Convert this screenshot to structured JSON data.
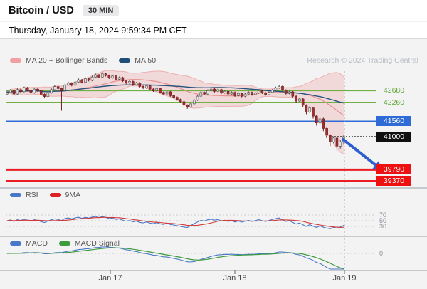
{
  "header": {
    "title": "Bitcoin / USD",
    "interval": "30 MIN",
    "datetime": "Thursday, January 18, 2024 9:59:34 PM CET",
    "research": "Research © 2024 Trading Central"
  },
  "colors": {
    "green_level": "#5fa636",
    "blue_level": "#2e6bd6",
    "red_level": "#ee1111",
    "last_price_bg": "#101010",
    "ma20": "#f0a0a0",
    "ma50": "#1f4e79",
    "rsi": "#4a78c8",
    "rsi_ma": "#dd2222",
    "macd": "#4a78c8",
    "macd_signal": "#3f9b3f",
    "arrow": "#2f5fce"
  },
  "chart_data": {
    "type": "candlestick",
    "title": "Bitcoin / USD 30 MIN",
    "x_labels": [
      "Jan 17",
      "Jan 18",
      "Jan 19"
    ],
    "price_panel": {
      "legend_ma20": "MA 20 + Bollinger Bands",
      "legend_ma50": "MA 50",
      "y_range": [
        39200,
        43500
      ],
      "first_open": 42560,
      "closes": [
        42620,
        42700,
        42560,
        42720,
        42650,
        42780,
        42690,
        42600,
        42740,
        42680,
        42550,
        42470,
        42600,
        42720,
        42830,
        42760,
        42680,
        42890,
        42960,
        42880,
        43000,
        43080,
        42990,
        43120,
        43060,
        43180,
        43260,
        43180,
        43300,
        43240,
        43150,
        43220,
        43100,
        43160,
        43040,
        42960,
        43020,
        42900,
        42960,
        42840,
        42780,
        42860,
        42740,
        42680,
        42760,
        42620,
        42560,
        42640,
        42500,
        42440,
        42360,
        42280,
        42150,
        42080,
        42200,
        42340,
        42480,
        42620,
        42560,
        42680,
        42740,
        42660,
        42720,
        42600,
        42660,
        42560,
        42620,
        42500,
        42580,
        42480,
        42560,
        42620,
        42540,
        42600,
        42680,
        42600,
        42540,
        42620,
        42700,
        42780,
        42840,
        42700,
        42580,
        42640,
        42480,
        42300,
        42380,
        42150,
        41900,
        42050,
        41750,
        41500,
        41650,
        41300,
        41050,
        40800,
        40950,
        40650,
        40800,
        41000
      ],
      "highs": [
        42670,
        42740,
        42730,
        42770,
        42760,
        42830,
        42820,
        42720,
        42790,
        42780,
        42710,
        42580,
        42650,
        42770,
        42880,
        42860,
        42800,
        42940,
        43010,
        42990,
        43050,
        43130,
        43110,
        43170,
        43150,
        43230,
        43310,
        43290,
        43380,
        43330,
        43270,
        43260,
        43250,
        43200,
        43190,
        43070,
        43060,
        43050,
        43000,
        42990,
        42870,
        42900,
        42890,
        42770,
        42800,
        42790,
        42650,
        42680,
        42670,
        42530,
        42470,
        42390,
        42310,
        42180,
        42250,
        42390,
        42530,
        42670,
        42650,
        42730,
        42790,
        42770,
        42760,
        42750,
        42700,
        42690,
        42660,
        42650,
        42620,
        42610,
        42600,
        42660,
        42650,
        42640,
        42720,
        42710,
        42630,
        42660,
        42740,
        42830,
        42890,
        42870,
        42730,
        42680,
        42670,
        42510,
        42430,
        42410,
        42180,
        42110,
        42080,
        41790,
        41710,
        41690,
        41340,
        41090,
        41010,
        40990,
        40870,
        41060
      ],
      "lows": [
        42520,
        42590,
        42520,
        42530,
        42610,
        42620,
        42650,
        42560,
        42570,
        42640,
        42510,
        42430,
        42440,
        42570,
        42690,
        42720,
        41950,
        42650,
        42860,
        42840,
        42850,
        42970,
        42950,
        42960,
        43020,
        43030,
        43150,
        43140,
        43150,
        43200,
        43110,
        43120,
        43060,
        43070,
        43000,
        42920,
        42930,
        42860,
        42870,
        42800,
        42740,
        42750,
        42700,
        42640,
        42650,
        42580,
        42520,
        42530,
        42460,
        42400,
        42320,
        42230,
        42100,
        42020,
        42050,
        42170,
        42310,
        42450,
        42520,
        42530,
        42650,
        42620,
        42630,
        42560,
        42570,
        42520,
        42530,
        42460,
        42470,
        42440,
        42450,
        42530,
        42500,
        42510,
        42570,
        42560,
        42500,
        42510,
        42590,
        42670,
        42750,
        42660,
        42540,
        42550,
        42430,
        42240,
        42270,
        42080,
        41820,
        41860,
        41660,
        41400,
        41460,
        41200,
        40940,
        40650,
        40750,
        40450,
        40560,
        40700
      ],
      "levels": [
        {
          "value": 42680,
          "role": "resistance",
          "style": "green"
        },
        {
          "value": 42260,
          "role": "resistance",
          "style": "green"
        },
        {
          "value": 41560,
          "role": "pivot",
          "style": "blue"
        },
        {
          "value": 41000,
          "role": "last_price",
          "style": "last"
        },
        {
          "value": 39790,
          "role": "support",
          "style": "red"
        },
        {
          "value": 39370,
          "role": "support",
          "style": "red"
        }
      ],
      "forecast_arrow": {
        "from_price": 41000,
        "to_price": 39790,
        "direction": "down"
      }
    },
    "rsi_panel": {
      "legend_rsi": "RSI",
      "legend_ma": "9MA",
      "period": 14,
      "ma_period": 9,
      "scale_labels": [
        "70",
        "50",
        "30"
      ]
    },
    "macd_panel": {
      "legend_macd": "MACD",
      "legend_signal": "MACD Signal",
      "zero_label": "0",
      "fast": 12,
      "slow": 26,
      "signal": 9
    }
  }
}
